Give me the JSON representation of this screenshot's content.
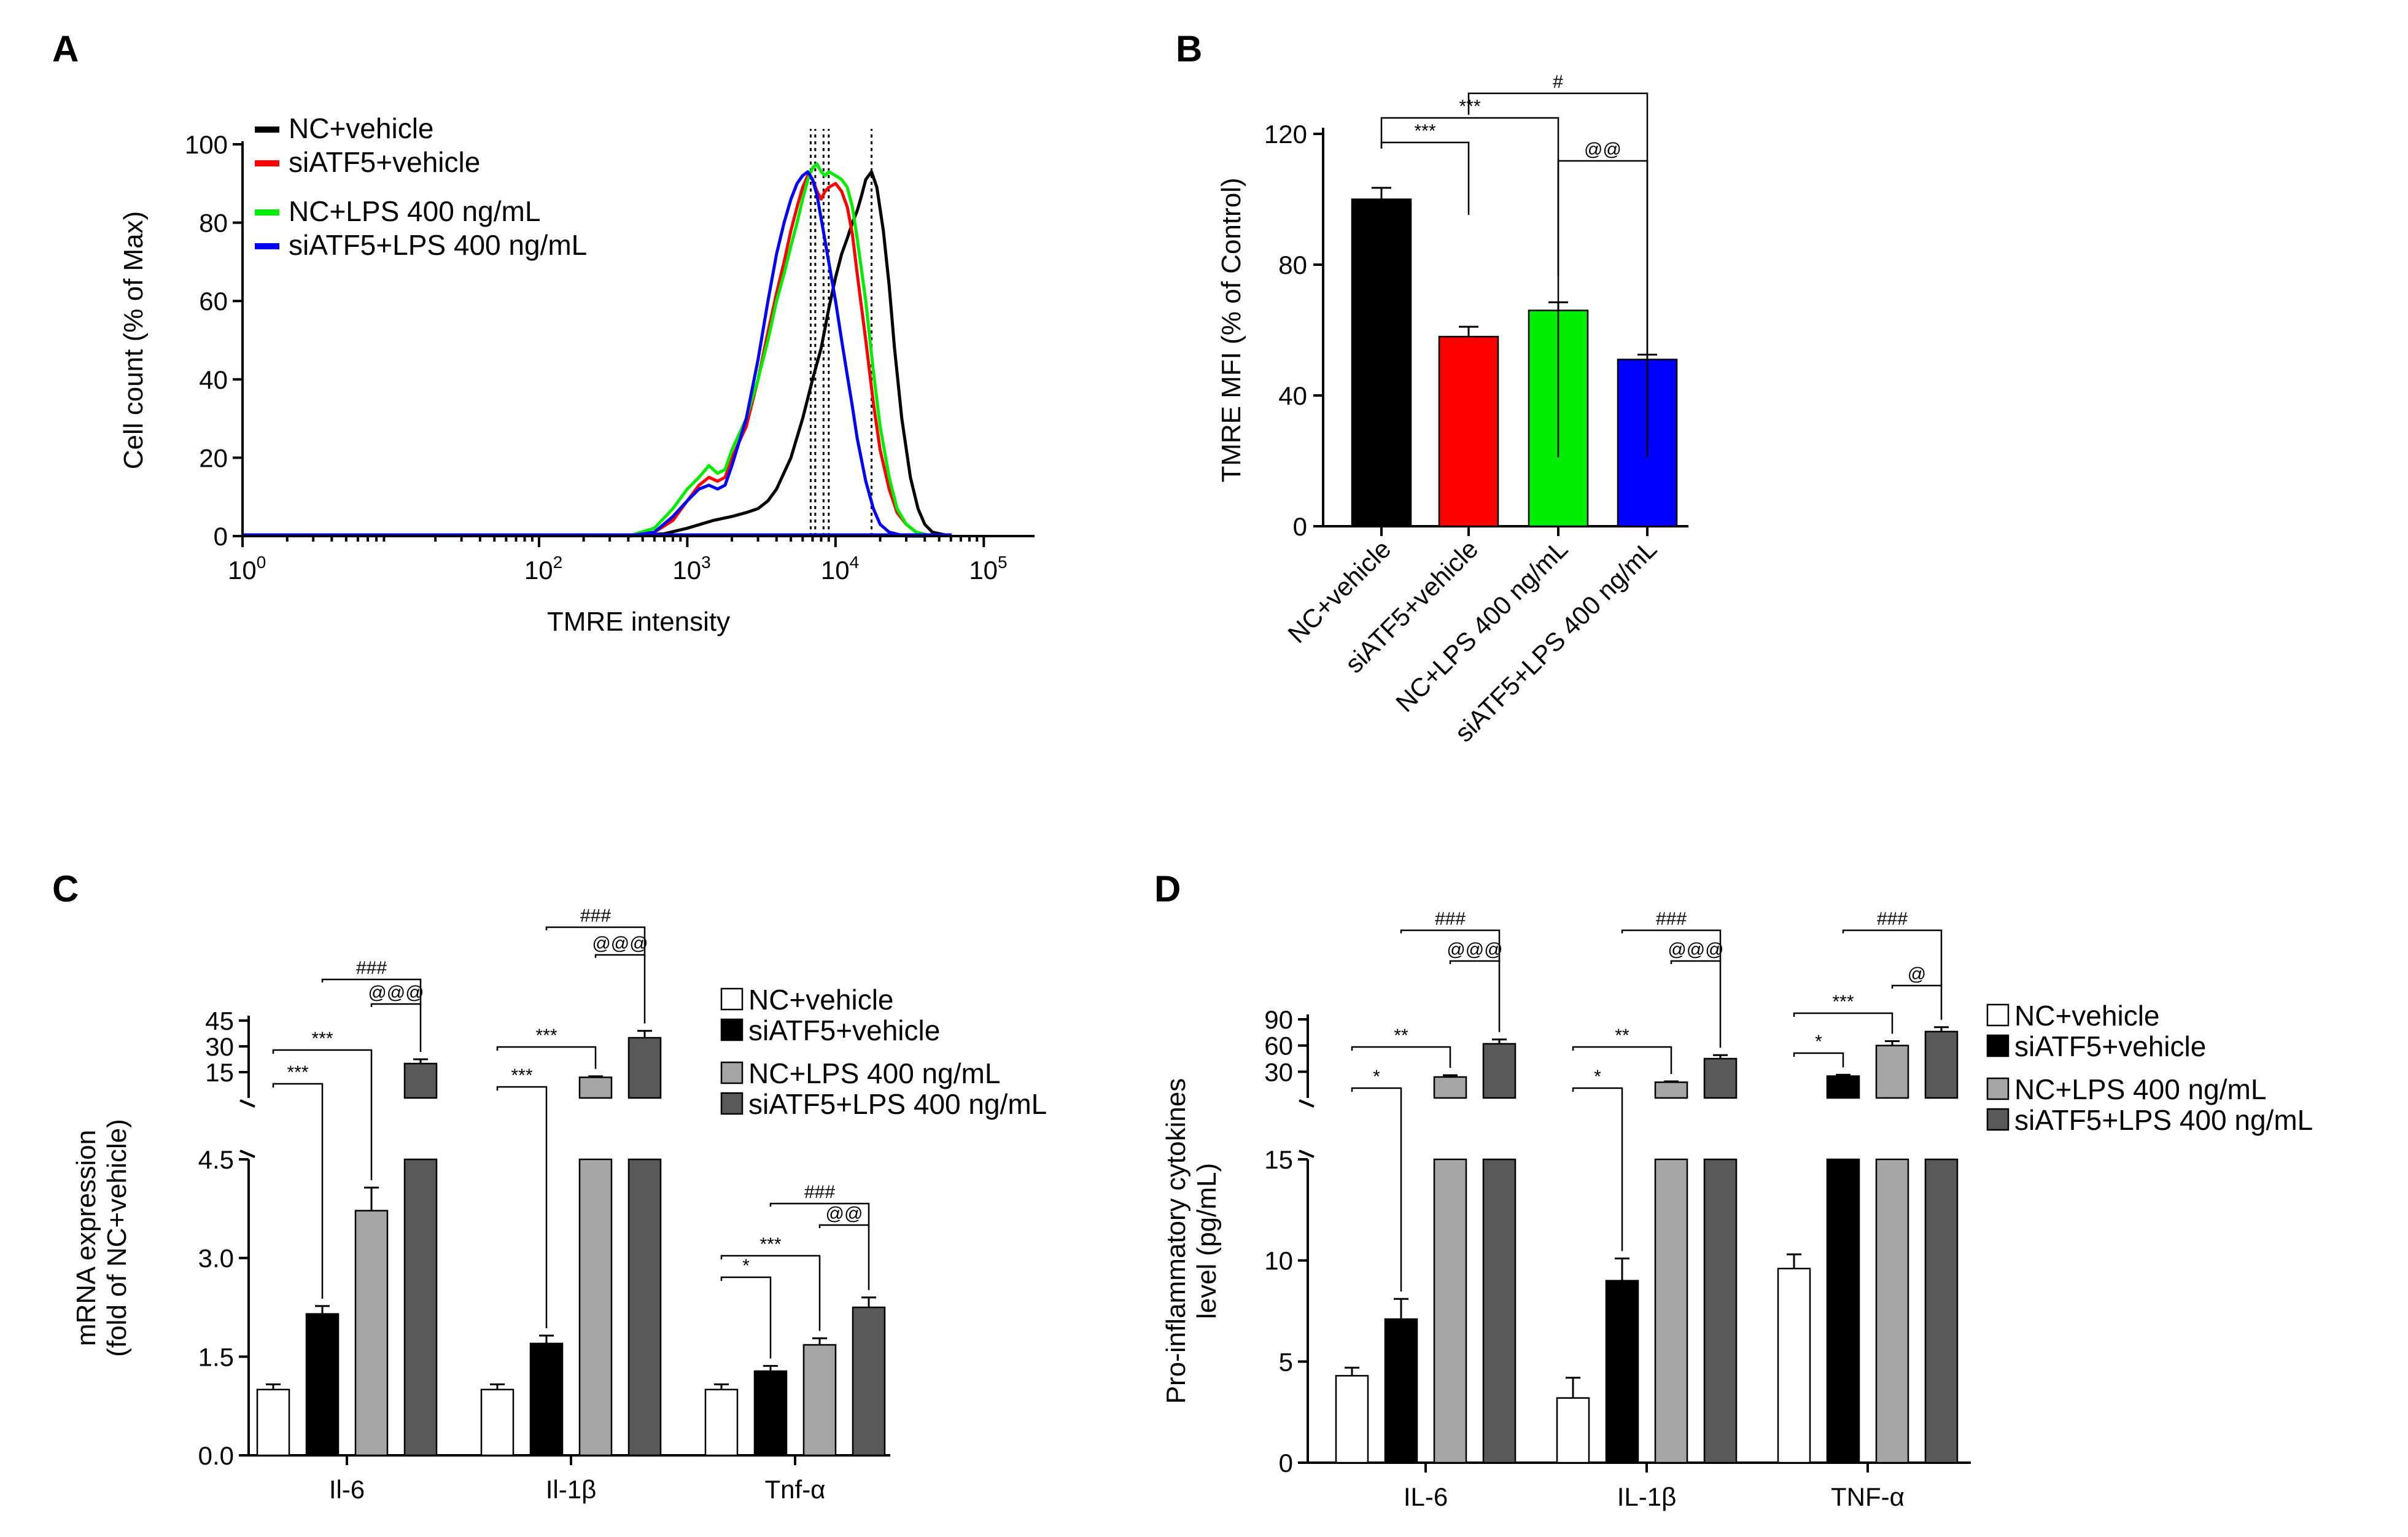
{
  "chart_data": [
    {
      "panel": "A",
      "type": "line",
      "xlabel": "TMRE intensity",
      "ylabel": "Cell count (% of Max)",
      "x_scale": "log",
      "xlim": [
        1,
        220000
      ],
      "ylim": [
        0,
        100
      ],
      "x_ticks": [
        {
          "base": "10",
          "exp": "0",
          "value": 1
        },
        {
          "base": "10",
          "exp": "2",
          "value": 100
        },
        {
          "base": "10",
          "exp": "3",
          "value": 1000
        },
        {
          "base": "10",
          "exp": "4",
          "value": 10000
        },
        {
          "base": "10",
          "exp": "5",
          "value": 100000
        }
      ],
      "y_ticks": [
        "0",
        "20",
        "40",
        "60",
        "80",
        "100"
      ],
      "legend_position": "top-left",
      "peak_markers": [
        6800,
        7300,
        8300,
        9000,
        17500
      ],
      "series": [
        {
          "name": "NC+vehicle",
          "color": "#000000",
          "x": [
            400,
            700,
            1000,
            1500,
            2000,
            2500,
            3000,
            3500,
            4000,
            5000,
            6000,
            7000,
            8000,
            9000,
            10000,
            11000,
            12000,
            13000,
            14000,
            15000,
            16000,
            17500,
            19000,
            21000,
            23000,
            25000,
            28000,
            32000,
            36000,
            40000,
            45000,
            60000
          ],
          "y": [
            0,
            0.6,
            2,
            4,
            5,
            6,
            7,
            9,
            12,
            20,
            30,
            40,
            48,
            58,
            66,
            72,
            76,
            80,
            83,
            87,
            91,
            93,
            89,
            78,
            64,
            48,
            30,
            15,
            7,
            3,
            1,
            0
          ]
        },
        {
          "name": "siATF5+vehicle",
          "color": "#ff0000",
          "x": [
            400,
            600,
            800,
            1000,
            1200,
            1400,
            1600,
            1800,
            2000,
            2500,
            3000,
            3500,
            4000,
            4500,
            5000,
            5500,
            6000,
            6500,
            7000,
            7500,
            8000,
            8500,
            9000,
            10000,
            11000,
            12000,
            13000,
            14000,
            16000,
            18000,
            20000,
            23000,
            26000,
            30000,
            35000,
            45000
          ],
          "y": [
            0,
            1,
            4,
            9,
            13,
            15,
            14,
            15,
            20,
            28,
            40,
            52,
            62,
            70,
            78,
            84,
            89,
            92,
            91,
            88,
            86,
            88,
            89,
            90,
            88,
            84,
            77,
            67,
            50,
            34,
            22,
            12,
            6,
            3,
            1,
            0
          ]
        },
        {
          "name": "NC+LPS 400 ng/mL",
          "color": "#00ee00",
          "x": [
            400,
            600,
            800,
            1000,
            1200,
            1400,
            1600,
            1800,
            2000,
            2500,
            3000,
            3500,
            4000,
            4500,
            5000,
            5500,
            6000,
            6500,
            7000,
            7500,
            8000,
            8500,
            9000,
            10000,
            11000,
            12000,
            13000,
            14000,
            16000,
            18000,
            20000,
            23000,
            26000,
            30000,
            35000,
            45000
          ],
          "y": [
            0,
            2,
            7,
            12,
            15,
            18,
            16,
            17,
            22,
            30,
            40,
            50,
            60,
            67,
            74,
            80,
            86,
            91,
            94,
            95,
            93,
            92,
            93,
            92,
            91,
            89,
            84,
            76,
            60,
            42,
            28,
            15,
            7,
            3,
            1,
            0
          ]
        },
        {
          "name": "siATF5+LPS 400 ng/mL",
          "color": "#0000ff",
          "x": [
            400,
            600,
            800,
            1000,
            1200,
            1400,
            1600,
            1800,
            2000,
            2500,
            3000,
            3500,
            4000,
            4500,
            5000,
            5500,
            6000,
            6500,
            7000,
            7500,
            8000,
            9000,
            10000,
            11000,
            12000,
            13000,
            14000,
            16000,
            18000,
            20000,
            23000,
            26000,
            30000,
            40000
          ],
          "y": [
            0,
            1,
            5,
            9,
            12,
            13,
            12,
            13,
            18,
            30,
            45,
            60,
            72,
            80,
            86,
            90,
            92,
            93,
            91,
            87,
            81,
            70,
            60,
            50,
            41,
            33,
            25,
            14,
            7,
            3,
            1,
            0.5,
            0,
            0
          ]
        }
      ]
    },
    {
      "panel": "B",
      "type": "bar",
      "ylabel": "TMRE MFI (% of Control)",
      "ylim": [
        0,
        120
      ],
      "y_ticks": [
        "0",
        "40",
        "80",
        "120"
      ],
      "categories": [
        "NC+vehicle",
        "siATF5+vehicle",
        "NC+LPS 400 ng/mL",
        "siATF5+LPS 400 ng/mL"
      ],
      "colors": [
        "#000000",
        "#ff0000",
        "#00ee00",
        "#0000ff"
      ],
      "values": [
        100,
        58,
        66,
        51
      ],
      "errors": [
        3.5,
        3,
        2.5,
        1.5
      ],
      "annotations": [
        {
          "text": "***",
          "from": 0,
          "to": 1
        },
        {
          "text": "***",
          "from": 0,
          "to": 2
        },
        {
          "text": "@@",
          "from": 2,
          "to": 3
        },
        {
          "text": "#",
          "from": 1,
          "to": 3
        }
      ]
    },
    {
      "panel": "C",
      "type": "bar",
      "ylabel": "mRNA expression",
      "ylabel2": "(fold of NC+vehicle)",
      "y_axis": "broken",
      "lower_ylim": [
        0,
        4.5
      ],
      "upper_ylim": [
        0,
        45
      ],
      "lower_ticks": [
        "0.0",
        "1.5",
        "3.0",
        "4.5"
      ],
      "upper_ticks": [
        "15",
        "30",
        "45"
      ],
      "categories": [
        "Il-6",
        "Il-1β",
        "Tnf-α"
      ],
      "series": [
        {
          "name": "NC+vehicle",
          "color": "#ffffff",
          "values": [
            1.0,
            1.0,
            1.0
          ],
          "errors": [
            0.08,
            0.08,
            0.08
          ]
        },
        {
          "name": "siATF5+vehicle",
          "color": "#000000",
          "values": [
            2.15,
            1.7,
            1.28
          ],
          "errors": [
            0.12,
            0.12,
            0.08
          ]
        },
        {
          "name": "NC+LPS 400 ng/mL",
          "color": "#a6a6a6",
          "values": [
            3.72,
            12,
            1.68
          ],
          "errors": [
            0.35,
            0.6,
            0.1
          ]
        },
        {
          "name": "siATF5+LPS 400 ng/mL",
          "color": "#595959",
          "values": [
            20,
            35,
            2.25
          ],
          "errors": [
            2.5,
            4,
            0.15
          ]
        }
      ],
      "annotations": [
        {
          "group": 0,
          "text": "***",
          "from": 0,
          "to": 1
        },
        {
          "group": 0,
          "text": "***",
          "from": 0,
          "to": 2
        },
        {
          "group": 0,
          "text": "@@@",
          "from": 2,
          "to": 3
        },
        {
          "group": 0,
          "text": "###",
          "from": 1,
          "to": 3
        },
        {
          "group": 1,
          "text": "***",
          "from": 0,
          "to": 1
        },
        {
          "group": 1,
          "text": "***",
          "from": 0,
          "to": 2
        },
        {
          "group": 1,
          "text": "@@@",
          "from": 2,
          "to": 3
        },
        {
          "group": 1,
          "text": "###",
          "from": 1,
          "to": 3
        },
        {
          "group": 2,
          "text": "*",
          "from": 0,
          "to": 1
        },
        {
          "group": 2,
          "text": "***",
          "from": 0,
          "to": 2
        },
        {
          "group": 2,
          "text": "@@",
          "from": 2,
          "to": 3
        },
        {
          "group": 2,
          "text": "###",
          "from": 1,
          "to": 3
        }
      ]
    },
    {
      "panel": "D",
      "type": "bar",
      "ylabel": "Pro-inflammatory cytokines",
      "ylabel2": "level (pg/mL)",
      "y_axis": "broken",
      "lower_ylim": [
        0,
        15
      ],
      "upper_ylim": [
        0,
        90
      ],
      "lower_ticks": [
        "0",
        "5",
        "10",
        "15"
      ],
      "upper_ticks": [
        "30",
        "60",
        "90"
      ],
      "categories": [
        "IL-6",
        "IL-1β",
        "TNF-α"
      ],
      "series": [
        {
          "name": "NC+vehicle",
          "color": "#ffffff",
          "values": [
            4.3,
            3.2,
            9.6
          ],
          "errors": [
            0.4,
            1.0,
            0.7
          ]
        },
        {
          "name": "siATF5+vehicle",
          "color": "#000000",
          "values": [
            7.1,
            9.0,
            25
          ],
          "errors": [
            1.0,
            1.1,
            1.5
          ]
        },
        {
          "name": "NC+LPS 400 ng/mL",
          "color": "#a6a6a6",
          "values": [
            24,
            18,
            60
          ],
          "errors": [
            2,
            1,
            5
          ]
        },
        {
          "name": "siATF5+LPS 400 ng/mL",
          "color": "#595959",
          "values": [
            62,
            45,
            76
          ],
          "errors": [
            5,
            4,
            5
          ]
        }
      ],
      "annotations": [
        {
          "group": 0,
          "text": "*",
          "from": 0,
          "to": 1
        },
        {
          "group": 0,
          "text": "**",
          "from": 0,
          "to": 2
        },
        {
          "group": 0,
          "text": "@@@",
          "from": 2,
          "to": 3
        },
        {
          "group": 0,
          "text": "###",
          "from": 1,
          "to": 3
        },
        {
          "group": 1,
          "text": "*",
          "from": 0,
          "to": 1
        },
        {
          "group": 1,
          "text": "**",
          "from": 0,
          "to": 2
        },
        {
          "group": 1,
          "text": "@@@",
          "from": 2,
          "to": 3
        },
        {
          "group": 1,
          "text": "###",
          "from": 1,
          "to": 3
        },
        {
          "group": 2,
          "text": "*",
          "from": 0,
          "to": 1
        },
        {
          "group": 2,
          "text": "***",
          "from": 0,
          "to": 2
        },
        {
          "group": 2,
          "text": "@",
          "from": 2,
          "to": 3
        },
        {
          "group": 2,
          "text": "###",
          "from": 1,
          "to": 3
        }
      ]
    }
  ],
  "panel_labels": [
    "A",
    "B",
    "C",
    "D"
  ]
}
